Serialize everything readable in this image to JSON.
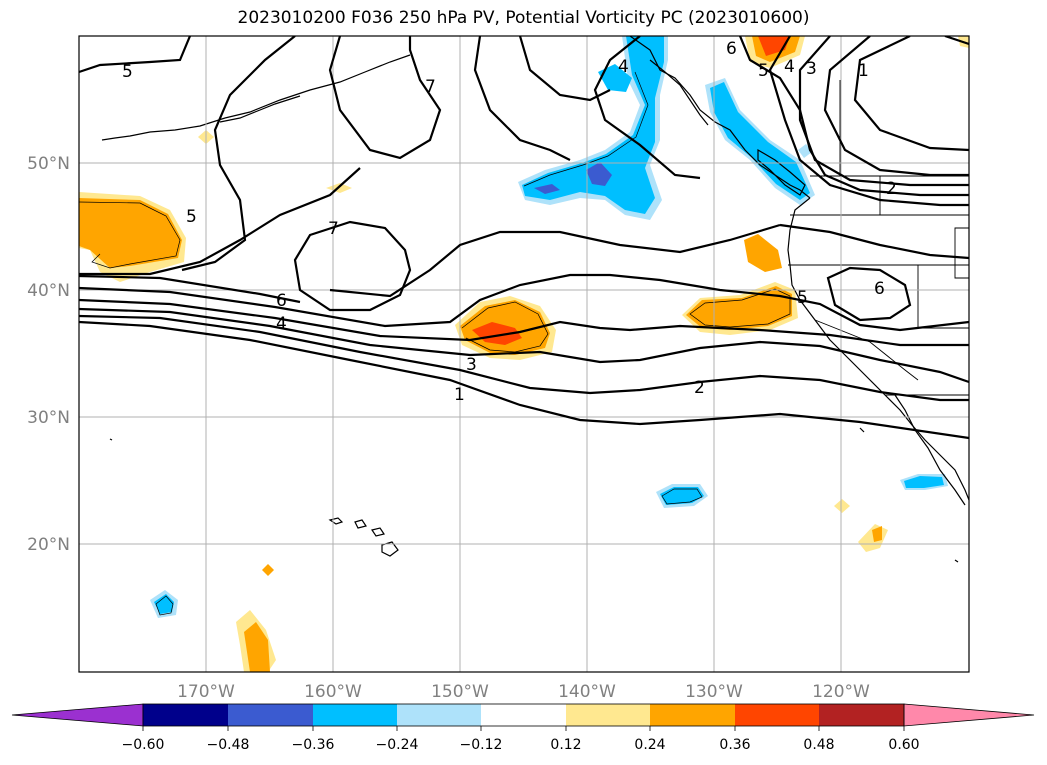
{
  "title": "2023010200 F036 250 hPa PV, Potential Vorticity PC (2023010600)",
  "lon_ticks": [
    "170°W",
    "160°W",
    "150°W",
    "140°W",
    "130°W",
    "120°W"
  ],
  "lat_ticks": [
    "50°N",
    "40°N",
    "30°N",
    "20°N"
  ],
  "contour_labels": [
    "5",
    "7",
    "4",
    "6",
    "5",
    "4",
    "3",
    "1",
    "5",
    "7",
    "6",
    "4",
    "3",
    "1",
    "2",
    "5",
    "6",
    "2"
  ],
  "colorbar": {
    "tick_labels": [
      "−0.60",
      "−0.48",
      "−0.36",
      "−0.24",
      "−0.12",
      "0.12",
      "0.24",
      "0.36",
      "0.48",
      "0.60"
    ],
    "colors": [
      "#9b30d0",
      "#00008b",
      "#3b5bd0",
      "#00bfff",
      "#aee2fa",
      "#ffffff",
      "#ffe890",
      "#ffa500",
      "#ff4500",
      "#b22222",
      "#ff88aa"
    ]
  }
}
